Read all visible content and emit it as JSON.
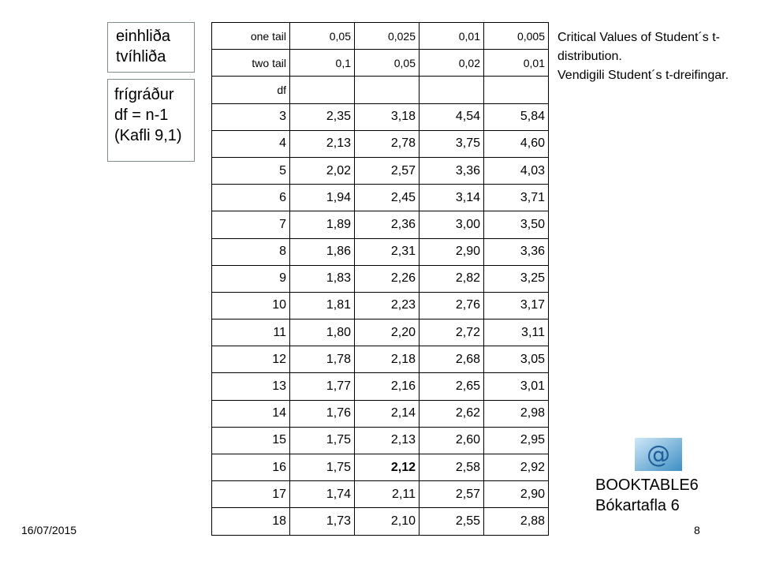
{
  "labels": {
    "tails": [
      "einhliða",
      "tvíhliða"
    ],
    "df_note": [
      "frígráður",
      "df = n-1",
      "(Kafli 9,1)"
    ]
  },
  "table": {
    "rows": [
      [
        "one tail",
        "0,05",
        "0,025",
        "0,01",
        "0,005"
      ],
      [
        "two tail",
        "0,1",
        "0,05",
        "0,02",
        "0,01"
      ],
      [
        "df"
      ],
      [
        "3",
        "2,35",
        "3,18",
        "4,54",
        "5,84"
      ],
      [
        "4",
        "2,13",
        "2,78",
        "3,75",
        "4,60"
      ],
      [
        "5",
        "2,02",
        "2,57",
        "3,36",
        "4,03"
      ],
      [
        "6",
        "1,94",
        "2,45",
        "3,14",
        "3,71"
      ],
      [
        "7",
        "1,89",
        "2,36",
        "3,00",
        "3,50"
      ],
      [
        "8",
        "1,86",
        "2,31",
        "2,90",
        "3,36"
      ],
      [
        "9",
        "1,83",
        "2,26",
        "2,82",
        "3,25"
      ],
      [
        "10",
        "1,81",
        "2,23",
        "2,76",
        "3,17"
      ],
      [
        "11",
        "1,80",
        "2,20",
        "2,72",
        "3,11"
      ],
      [
        "12",
        "1,78",
        "2,18",
        "2,68",
        "3,05"
      ],
      [
        "13",
        "1,77",
        "2,16",
        "2,65",
        "3,01"
      ],
      [
        "14",
        "1,76",
        "2,14",
        "2,62",
        "2,98"
      ],
      [
        "15",
        "1,75",
        "2,13",
        "2,60",
        "2,95"
      ],
      [
        "16",
        "1,75",
        "2,12",
        "2,58",
        "2,92"
      ],
      [
        "17",
        "1,74",
        "2,11",
        "2,57",
        "2,90"
      ],
      [
        "18",
        "1,73",
        "2,10",
        "2,55",
        "2,88"
      ]
    ]
  },
  "caption": [
    "Critical Values of Student´s t-distribution.",
    "Vendigili Student´s t-dreifingar."
  ],
  "book": [
    "BOOKTABLE6",
    "Bókartafla 6"
  ],
  "footer": {
    "date": "16/07/2015",
    "page": "8"
  }
}
